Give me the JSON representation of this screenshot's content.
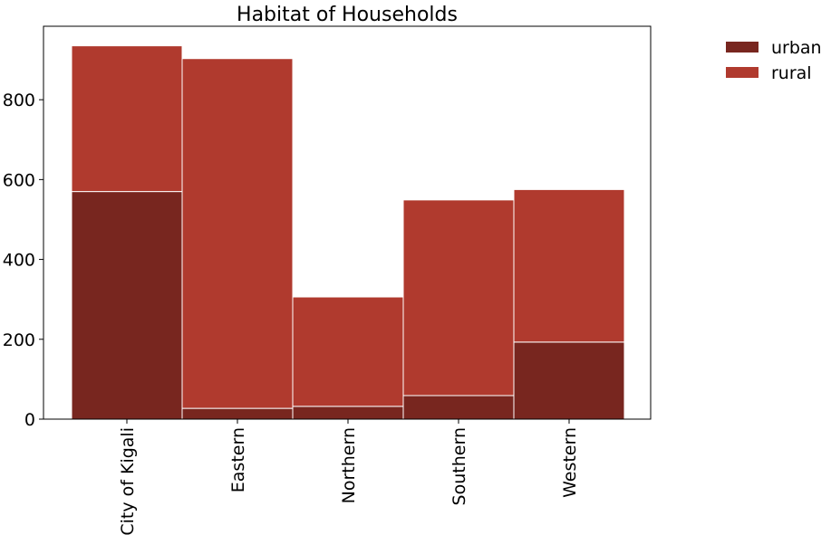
{
  "chart_data": {
    "type": "bar",
    "stacked": true,
    "title": "Habitat of Households",
    "xlabel": "",
    "ylabel": "",
    "categories": [
      "City of Kigali",
      "Eastern",
      "Northern",
      "Southern",
      "Western"
    ],
    "series": [
      {
        "name": "urban",
        "values": [
          570,
          27,
          32,
          59,
          193
        ],
        "color": "#78261f"
      },
      {
        "name": "rural",
        "values": [
          365,
          876,
          274,
          490,
          382
        ],
        "color": "#b03a2e"
      }
    ],
    "ylim": [
      0,
      984
    ],
    "yticks": [
      0,
      200,
      400,
      600,
      800
    ],
    "grid": false,
    "legend_position": "top-right, outside plot"
  }
}
